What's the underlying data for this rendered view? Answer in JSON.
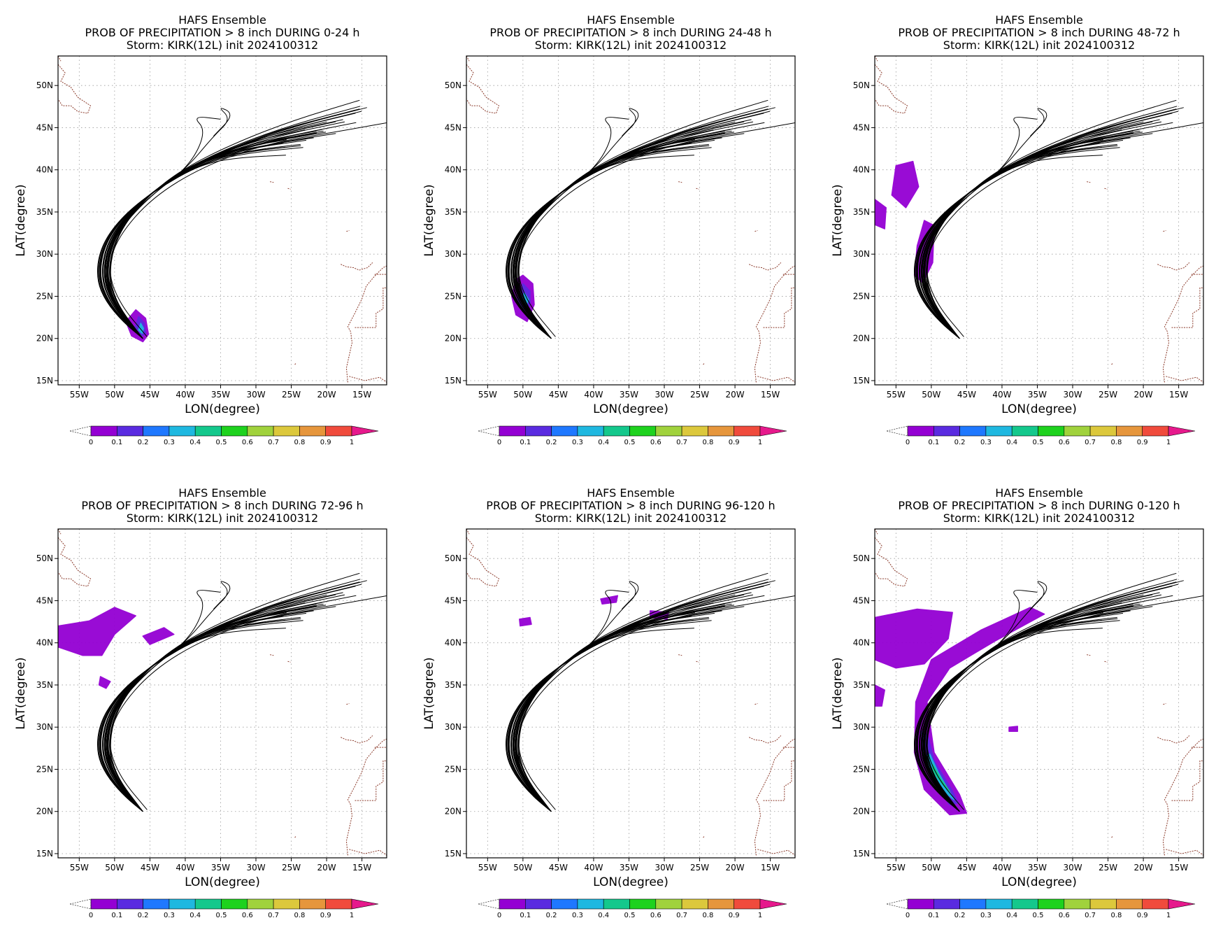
{
  "colors": {
    "track": "#000000",
    "coast": "#8b3a2a",
    "grid": "#9a9a9a",
    "colorbar": [
      "#9400d3",
      "#5a2be0",
      "#1f78ff",
      "#1fb8e0",
      "#14c88c",
      "#1ed21e",
      "#a0d23c",
      "#dcc83c",
      "#e6963c",
      "#f04b3c",
      "#e6198c"
    ]
  },
  "chart_data": [
    {
      "type": "heatmap",
      "title": [
        "HAFS Ensemble",
        "PROB OF PRECIPITATION > 8 inch DURING  0-24 h",
        "Storm: KIRK(12L) init 2024100312"
      ],
      "xlabel": "LON(degree)",
      "ylabel": "LAT(degree)",
      "xlim": [
        -58,
        -11.5
      ],
      "ylim": [
        14.5,
        53.5
      ],
      "xticks": [
        "55W",
        "50W",
        "45W",
        "40W",
        "35W",
        "30W",
        "25W",
        "20W",
        "15W"
      ],
      "yticks": [
        "15N",
        "20N",
        "25N",
        "30N",
        "35N",
        "40N",
        "45N",
        "50N"
      ],
      "grid": true,
      "colorbar": {
        "ticks": [
          "0",
          "0.1",
          "0.2",
          "0.3",
          "0.4",
          "0.5",
          "0.6",
          "0.7",
          "0.8",
          "0.9",
          "1"
        ]
      },
      "precip_areas": [
        {
          "prob": 0.05,
          "points": [
            [
              -47.0,
              23.4
            ],
            [
              -45.6,
              22.4
            ],
            [
              -45.2,
              20.5
            ],
            [
              -46.0,
              19.6
            ],
            [
              -47.6,
              20.3
            ],
            [
              -48.4,
              22.0
            ]
          ]
        },
        {
          "prob": 0.15,
          "points": [
            [
              -46.6,
              22.6
            ],
            [
              -45.8,
              21.8
            ],
            [
              -45.6,
              20.6
            ],
            [
              -46.3,
              20.2
            ],
            [
              -47.2,
              21.0
            ]
          ]
        },
        {
          "prob": 0.35,
          "points": [
            [
              -46.3,
              21.8
            ],
            [
              -45.9,
              21.2
            ],
            [
              -46.1,
              20.6
            ],
            [
              -46.6,
              21.0
            ]
          ]
        }
      ]
    },
    {
      "type": "heatmap",
      "title": [
        "HAFS Ensemble",
        "PROB OF PRECIPITATION > 8 inch DURING 24-48 h",
        "Storm: KIRK(12L) init 2024100312"
      ],
      "xlabel": "LON(degree)",
      "ylabel": "LAT(degree)",
      "xlim": [
        -58,
        -11.5
      ],
      "ylim": [
        14.5,
        53.5
      ],
      "xticks": [
        "55W",
        "50W",
        "45W",
        "40W",
        "35W",
        "30W",
        "25W",
        "20W",
        "15W"
      ],
      "yticks": [
        "15N",
        "20N",
        "25N",
        "30N",
        "35N",
        "40N",
        "45N",
        "50N"
      ],
      "grid": true,
      "colorbar": {
        "ticks": [
          "0",
          "0.1",
          "0.2",
          "0.3",
          "0.4",
          "0.5",
          "0.6",
          "0.7",
          "0.8",
          "0.9",
          "1"
        ]
      },
      "precip_areas": [
        {
          "prob": 0.05,
          "points": [
            [
              -50.0,
              27.5
            ],
            [
              -48.6,
              26.5
            ],
            [
              -48.4,
              24.0
            ],
            [
              -49.4,
              22.0
            ],
            [
              -51.0,
              22.8
            ],
            [
              -51.6,
              25.0
            ],
            [
              -51.0,
              27.0
            ]
          ]
        },
        {
          "prob": 0.15,
          "points": [
            [
              -50.0,
              26.5
            ],
            [
              -49.0,
              25.6
            ],
            [
              -49.0,
              24.0
            ],
            [
              -50.0,
              23.2
            ],
            [
              -50.8,
              24.6
            ]
          ]
        },
        {
          "prob": 0.35,
          "points": [
            [
              -49.8,
              25.4
            ],
            [
              -49.2,
              24.6
            ],
            [
              -49.6,
              23.8
            ],
            [
              -50.2,
              24.4
            ]
          ]
        }
      ]
    },
    {
      "type": "heatmap",
      "title": [
        "HAFS Ensemble",
        "PROB OF PRECIPITATION > 8 inch DURING 48-72 h",
        "Storm: KIRK(12L) init 2024100312"
      ],
      "xlabel": "LON(degree)",
      "ylabel": "LAT(degree)",
      "xlim": [
        -58,
        -11.5
      ],
      "ylim": [
        14.5,
        53.5
      ],
      "xticks": [
        "55W",
        "50W",
        "45W",
        "40W",
        "35W",
        "30W",
        "25W",
        "20W",
        "15W"
      ],
      "yticks": [
        "15N",
        "20N",
        "25N",
        "30N",
        "35N",
        "40N",
        "45N",
        "50N"
      ],
      "grid": true,
      "colorbar": {
        "ticks": [
          "0",
          "0.1",
          "0.2",
          "0.3",
          "0.4",
          "0.5",
          "0.6",
          "0.7",
          "0.8",
          "0.9",
          "1"
        ]
      },
      "precip_areas": [
        {
          "prob": 0.05,
          "points": [
            [
              -55.0,
              40.5
            ],
            [
              -52.6,
              41.0
            ],
            [
              -51.8,
              38.0
            ],
            [
              -53.6,
              35.5
            ],
            [
              -55.6,
              37.0
            ]
          ]
        },
        {
          "prob": 0.05,
          "points": [
            [
              -58.0,
              36.5
            ],
            [
              -56.4,
              35.5
            ],
            [
              -56.6,
              33.0
            ],
            [
              -58.0,
              33.5
            ]
          ]
        },
        {
          "prob": 0.05,
          "points": [
            [
              -51.0,
              34.0
            ],
            [
              -49.6,
              33.4
            ],
            [
              -49.8,
              29.0
            ],
            [
              -51.2,
              26.6
            ],
            [
              -52.4,
              27.5
            ],
            [
              -52.0,
              31.0
            ]
          ]
        }
      ]
    },
    {
      "type": "heatmap",
      "title": [
        "HAFS Ensemble",
        "PROB OF PRECIPITATION > 8 inch DURING 72-96 h",
        "Storm: KIRK(12L) init 2024100312"
      ],
      "xlabel": "LON(degree)",
      "ylabel": "LAT(degree)",
      "xlim": [
        -58,
        -11.5
      ],
      "ylim": [
        14.5,
        53.5
      ],
      "xticks": [
        "55W",
        "50W",
        "45W",
        "40W",
        "35W",
        "30W",
        "25W",
        "20W",
        "15W"
      ],
      "yticks": [
        "15N",
        "20N",
        "25N",
        "30N",
        "35N",
        "40N",
        "45N",
        "50N"
      ],
      "grid": true,
      "colorbar": {
        "ticks": [
          "0",
          "0.1",
          "0.2",
          "0.3",
          "0.4",
          "0.5",
          "0.6",
          "0.7",
          "0.8",
          "0.9",
          "1"
        ]
      },
      "precip_areas": [
        {
          "prob": 0.05,
          "points": [
            [
              -58.0,
              42.0
            ],
            [
              -53.6,
              42.6
            ],
            [
              -50.0,
              44.2
            ],
            [
              -47.0,
              43.2
            ],
            [
              -50.0,
              41.0
            ],
            [
              -51.8,
              38.5
            ],
            [
              -54.5,
              38.5
            ],
            [
              -58.0,
              39.5
            ]
          ]
        },
        {
          "prob": 0.05,
          "points": [
            [
              -46.0,
              40.8
            ],
            [
              -43.0,
              41.8
            ],
            [
              -41.6,
              41.0
            ],
            [
              -45.0,
              39.8
            ]
          ]
        },
        {
          "prob": 0.05,
          "points": [
            [
              -52.0,
              36.0
            ],
            [
              -50.6,
              35.4
            ],
            [
              -51.2,
              34.6
            ],
            [
              -52.2,
              35.0
            ]
          ]
        }
      ]
    },
    {
      "type": "heatmap",
      "title": [
        "HAFS Ensemble",
        "PROB OF PRECIPITATION > 8 inch DURING 96-120 h",
        "Storm: KIRK(12L) init 2024100312"
      ],
      "xlabel": "LON(degree)",
      "ylabel": "LAT(degree)",
      "xlim": [
        -58,
        -11.5
      ],
      "ylim": [
        14.5,
        53.5
      ],
      "xticks": [
        "55W",
        "50W",
        "45W",
        "40W",
        "35W",
        "30W",
        "25W",
        "20W",
        "15W"
      ],
      "yticks": [
        "15N",
        "20N",
        "25N",
        "30N",
        "35N",
        "40N",
        "45N",
        "50N"
      ],
      "grid": true,
      "colorbar": {
        "ticks": [
          "0",
          "0.1",
          "0.2",
          "0.3",
          "0.4",
          "0.5",
          "0.6",
          "0.7",
          "0.8",
          "0.9",
          "1"
        ]
      },
      "precip_areas": [
        {
          "prob": 0.05,
          "points": [
            [
              -50.5,
              42.8
            ],
            [
              -49.0,
              43.0
            ],
            [
              -48.8,
              42.2
            ],
            [
              -50.4,
              42.0
            ]
          ]
        },
        {
          "prob": 0.05,
          "points": [
            [
              -39.0,
              45.2
            ],
            [
              -36.6,
              45.6
            ],
            [
              -36.8,
              44.8
            ],
            [
              -38.8,
              44.6
            ]
          ]
        },
        {
          "prob": 0.05,
          "points": [
            [
              -32.0,
              43.8
            ],
            [
              -29.4,
              43.6
            ],
            [
              -29.6,
              42.8
            ],
            [
              -32.0,
              43.0
            ]
          ]
        }
      ]
    },
    {
      "type": "heatmap",
      "title": [
        "HAFS Ensemble",
        "PROB OF PRECIPITATION > 8 inch DURING 0-120 h",
        "Storm: KIRK(12L) init 2024100312"
      ],
      "xlabel": "LON(degree)",
      "ylabel": "LAT(degree)",
      "xlim": [
        -58,
        -11.5
      ],
      "ylim": [
        14.5,
        53.5
      ],
      "xticks": [
        "55W",
        "50W",
        "45W",
        "40W",
        "35W",
        "30W",
        "25W",
        "20W",
        "15W"
      ],
      "yticks": [
        "15N",
        "20N",
        "25N",
        "30N",
        "35N",
        "40N",
        "45N",
        "50N"
      ],
      "grid": true,
      "colorbar": {
        "ticks": [
          "0",
          "0.1",
          "0.2",
          "0.3",
          "0.4",
          "0.5",
          "0.6",
          "0.7",
          "0.8",
          "0.9",
          "1"
        ]
      },
      "precip_areas": [
        {
          "prob": 0.05,
          "points": [
            [
              -58.0,
              43.0
            ],
            [
              -52.0,
              44.0
            ],
            [
              -47.0,
              43.6
            ],
            [
              -47.6,
              40.5
            ],
            [
              -51.0,
              37.5
            ],
            [
              -55.0,
              37.0
            ],
            [
              -58.0,
              38.0
            ]
          ]
        },
        {
          "prob": 0.05,
          "points": [
            [
              -58.0,
              35.0
            ],
            [
              -56.6,
              34.4
            ],
            [
              -57.0,
              32.5
            ],
            [
              -58.0,
              32.5
            ]
          ]
        },
        {
          "prob": 0.05,
          "points": [
            [
              -50.0,
              38.0
            ],
            [
              -43.0,
              41.5
            ],
            [
              -36.0,
              44.2
            ],
            [
              -34.0,
              43.4
            ],
            [
              -41.0,
              40.2
            ],
            [
              -47.4,
              37.0
            ],
            [
              -50.6,
              33.0
            ],
            [
              -49.6,
              27.0
            ],
            [
              -46.0,
              22.0
            ],
            [
              -45.0,
              19.8
            ],
            [
              -47.4,
              19.6
            ],
            [
              -51.0,
              22.6
            ],
            [
              -52.4,
              27.0
            ],
            [
              -52.2,
              33.0
            ]
          ]
        },
        {
          "prob": 0.15,
          "points": [
            [
              -50.5,
              29.0
            ],
            [
              -49.6,
              26.0
            ],
            [
              -47.0,
              22.4
            ],
            [
              -46.2,
              21.0
            ],
            [
              -47.4,
              20.8
            ],
            [
              -49.6,
              23.4
            ],
            [
              -51.2,
              26.6
            ],
            [
              -51.4,
              29.5
            ]
          ]
        },
        {
          "prob": 0.35,
          "points": [
            [
              -50.2,
              26.8
            ],
            [
              -49.0,
              24.6
            ],
            [
              -47.2,
              22.0
            ],
            [
              -46.8,
              21.4
            ],
            [
              -48.0,
              22.2
            ],
            [
              -49.8,
              24.4
            ],
            [
              -50.8,
              26.6
            ]
          ]
        },
        {
          "prob": 0.45,
          "points": [
            [
              -49.8,
              25.6
            ],
            [
              -48.6,
              23.8
            ],
            [
              -47.4,
              22.4
            ],
            [
              -48.4,
              23.2
            ],
            [
              -49.8,
              24.8
            ]
          ]
        },
        {
          "prob": 0.05,
          "points": [
            [
              -39.0,
              30.0
            ],
            [
              -37.8,
              30.1
            ],
            [
              -37.8,
              29.5
            ],
            [
              -39.0,
              29.5
            ]
          ]
        }
      ]
    }
  ]
}
